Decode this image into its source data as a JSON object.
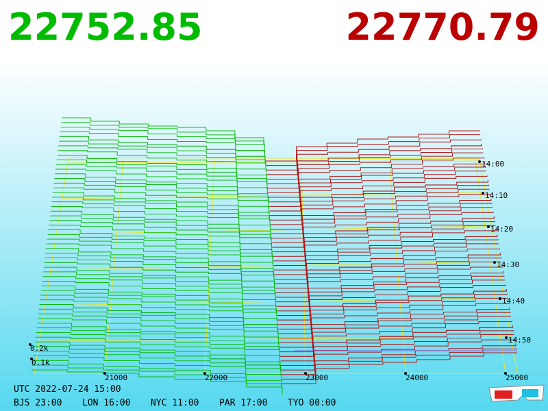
{
  "header": {
    "bid": "22752.85",
    "ask": "22770.79"
  },
  "axes": {
    "price_ticks": [
      "21000",
      "22000",
      "23000",
      "24000",
      "25000"
    ],
    "time_ticks": [
      "14:00",
      "14:10",
      "14:20",
      "14:30",
      "14:40",
      "14:50"
    ],
    "depth_ticks": [
      "0.2k",
      "0.1k"
    ]
  },
  "footer": {
    "utc": "UTC 2022-07-24 15:00",
    "zones": [
      "BJS 23:00",
      "LON 16:00",
      "NYC 11:00",
      "PAR 17:00",
      "TYO 00:00"
    ]
  }
}
